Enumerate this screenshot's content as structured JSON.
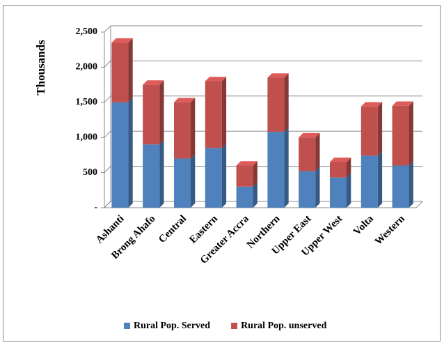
{
  "chart_data": {
    "type": "stacked_bar_3d",
    "y_label": "Thousands",
    "categories": [
      "Ashanti",
      "Brong Ahafo",
      "Central",
      "Eastern",
      "Greater Accra",
      "Northern",
      "Upper East",
      "Upper West",
      "Volta",
      "Western"
    ],
    "series": [
      {
        "name": "Rural Pop. Served",
        "color": "#4f81bd",
        "values": [
          1500,
          900,
          700,
          850,
          300,
          1080,
          520,
          430,
          740,
          600
        ]
      },
      {
        "name": "Rural Pop. unserved",
        "color": "#c0504d",
        "values": [
          850,
          850,
          800,
          950,
          300,
          770,
          480,
          220,
          700,
          850
        ]
      }
    ],
    "ylim": [
      0,
      2500
    ],
    "yticks": [
      {
        "value": 0,
        "label": "-"
      },
      500,
      {
        "value": 1000,
        "label": "1,000"
      },
      {
        "value": 1500,
        "label": "1,500"
      },
      {
        "value": 2000,
        "label": "2,000"
      },
      {
        "value": 2500,
        "label": "2,500"
      }
    ],
    "grid": true,
    "legend": "bottom"
  }
}
